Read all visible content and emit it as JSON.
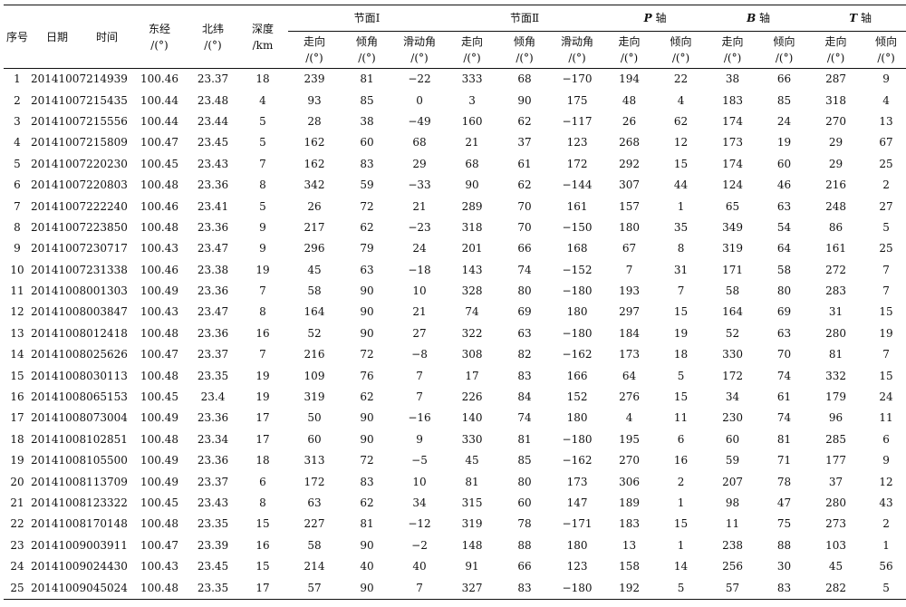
{
  "headers": {
    "seq": "序号",
    "date": "日期",
    "time": "时间",
    "lon": [
      "东经",
      "/(°)"
    ],
    "lat": [
      "北纬",
      "/(°)"
    ],
    "depth": [
      "深度",
      "/km"
    ],
    "plane1": "节面Ⅰ",
    "plane2": "节面Ⅱ",
    "p_axis": [
      "P",
      " 轴"
    ],
    "b_axis": [
      "B",
      " 轴"
    ],
    "t_axis": [
      "T",
      " 轴"
    ],
    "strike": [
      "走向",
      "/(°)"
    ],
    "dip": [
      "倾角",
      "/(°)"
    ],
    "rake": [
      "滑动角",
      "/(°)"
    ],
    "azimuth": [
      "走向",
      "/(°)"
    ],
    "plunge": [
      "倾向",
      "/(°)"
    ]
  },
  "rows": [
    [
      "1",
      "20141007",
      "214939",
      "100.46",
      "23.37",
      "18",
      "239",
      "81",
      "−22",
      "333",
      "68",
      "−170",
      "194",
      "22",
      "38",
      "66",
      "287",
      "9"
    ],
    [
      "2",
      "20141007",
      "215435",
      "100.44",
      "23.48",
      "4",
      "93",
      "85",
      "0",
      "3",
      "90",
      "175",
      "48",
      "4",
      "183",
      "85",
      "318",
      "4"
    ],
    [
      "3",
      "20141007",
      "215556",
      "100.44",
      "23.44",
      "5",
      "28",
      "38",
      "−49",
      "160",
      "62",
      "−117",
      "26",
      "62",
      "174",
      "24",
      "270",
      "13"
    ],
    [
      "4",
      "20141007",
      "215809",
      "100.47",
      "23.45",
      "5",
      "162",
      "60",
      "68",
      "21",
      "37",
      "123",
      "268",
      "12",
      "173",
      "19",
      "29",
      "67"
    ],
    [
      "5",
      "20141007",
      "220230",
      "100.45",
      "23.43",
      "7",
      "162",
      "83",
      "29",
      "68",
      "61",
      "172",
      "292",
      "15",
      "174",
      "60",
      "29",
      "25"
    ],
    [
      "6",
      "20141007",
      "220803",
      "100.48",
      "23.36",
      "8",
      "342",
      "59",
      "−33",
      "90",
      "62",
      "−144",
      "307",
      "44",
      "124",
      "46",
      "216",
      "2"
    ],
    [
      "7",
      "20141007",
      "222240",
      "100.46",
      "23.41",
      "5",
      "26",
      "72",
      "21",
      "289",
      "70",
      "161",
      "157",
      "1",
      "65",
      "63",
      "248",
      "27"
    ],
    [
      "8",
      "20141007",
      "223850",
      "100.48",
      "23.36",
      "9",
      "217",
      "62",
      "−23",
      "318",
      "70",
      "−150",
      "180",
      "35",
      "349",
      "54",
      "86",
      "5"
    ],
    [
      "9",
      "20141007",
      "230717",
      "100.43",
      "23.47",
      "9",
      "296",
      "79",
      "24",
      "201",
      "66",
      "168",
      "67",
      "8",
      "319",
      "64",
      "161",
      "25"
    ],
    [
      "10",
      "20141007",
      "231338",
      "100.46",
      "23.38",
      "19",
      "45",
      "63",
      "−18",
      "143",
      "74",
      "−152",
      "7",
      "31",
      "171",
      "58",
      "272",
      "7"
    ],
    [
      "11",
      "20141008",
      "001303",
      "100.49",
      "23.36",
      "7",
      "58",
      "90",
      "10",
      "328",
      "80",
      "−180",
      "193",
      "7",
      "58",
      "80",
      "283",
      "7"
    ],
    [
      "12",
      "20141008",
      "003847",
      "100.43",
      "23.47",
      "8",
      "164",
      "90",
      "21",
      "74",
      "69",
      "180",
      "297",
      "15",
      "164",
      "69",
      "31",
      "15"
    ],
    [
      "13",
      "20141008",
      "012418",
      "100.48",
      "23.36",
      "16",
      "52",
      "90",
      "27",
      "322",
      "63",
      "−180",
      "184",
      "19",
      "52",
      "63",
      "280",
      "19"
    ],
    [
      "14",
      "20141008",
      "025626",
      "100.47",
      "23.37",
      "7",
      "216",
      "72",
      "−8",
      "308",
      "82",
      "−162",
      "173",
      "18",
      "330",
      "70",
      "81",
      "7"
    ],
    [
      "15",
      "20141008",
      "030113",
      "100.48",
      "23.35",
      "19",
      "109",
      "76",
      "7",
      "17",
      "83",
      "166",
      "64",
      "5",
      "172",
      "74",
      "332",
      "15"
    ],
    [
      "16",
      "20141008",
      "065153",
      "100.45",
      "23.4",
      "19",
      "319",
      "62",
      "7",
      "226",
      "84",
      "152",
      "276",
      "15",
      "34",
      "61",
      "179",
      "24"
    ],
    [
      "17",
      "20141008",
      "073004",
      "100.49",
      "23.36",
      "17",
      "50",
      "90",
      "−16",
      "140",
      "74",
      "180",
      "4",
      "11",
      "230",
      "74",
      "96",
      "11"
    ],
    [
      "18",
      "20141008",
      "102851",
      "100.48",
      "23.34",
      "17",
      "60",
      "90",
      "9",
      "330",
      "81",
      "−180",
      "195",
      "6",
      "60",
      "81",
      "285",
      "6"
    ],
    [
      "19",
      "20141008",
      "105500",
      "100.49",
      "23.36",
      "18",
      "313",
      "72",
      "−5",
      "45",
      "85",
      "−162",
      "270",
      "16",
      "59",
      "71",
      "177",
      "9"
    ],
    [
      "20",
      "20141008",
      "113709",
      "100.49",
      "23.37",
      "6",
      "172",
      "83",
      "10",
      "81",
      "80",
      "173",
      "306",
      "2",
      "207",
      "78",
      "37",
      "12"
    ],
    [
      "21",
      "20141008",
      "123322",
      "100.45",
      "23.43",
      "8",
      "63",
      "62",
      "34",
      "315",
      "60",
      "147",
      "189",
      "1",
      "98",
      "47",
      "280",
      "43"
    ],
    [
      "22",
      "20141008",
      "170148",
      "100.48",
      "23.35",
      "15",
      "227",
      "81",
      "−12",
      "319",
      "78",
      "−171",
      "183",
      "15",
      "11",
      "75",
      "273",
      "2"
    ],
    [
      "23",
      "20141009",
      "003911",
      "100.47",
      "23.39",
      "16",
      "58",
      "90",
      "−2",
      "148",
      "88",
      "180",
      "13",
      "1",
      "238",
      "88",
      "103",
      "1"
    ],
    [
      "24",
      "20141009",
      "024430",
      "100.43",
      "23.45",
      "15",
      "214",
      "40",
      "40",
      "91",
      "66",
      "123",
      "158",
      "14",
      "256",
      "30",
      "45",
      "56"
    ],
    [
      "25",
      "20141009",
      "045024",
      "100.48",
      "23.35",
      "17",
      "57",
      "90",
      "7",
      "327",
      "83",
      "−180",
      "192",
      "5",
      "57",
      "83",
      "282",
      "5"
    ]
  ]
}
